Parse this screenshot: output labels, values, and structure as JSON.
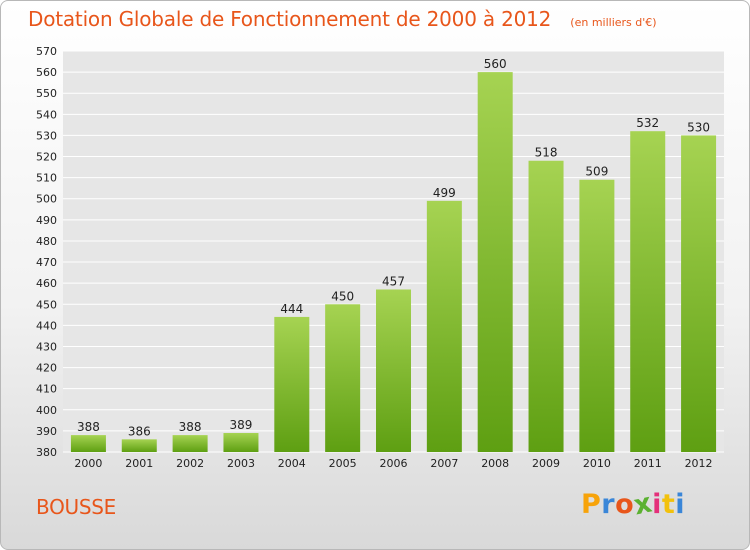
{
  "header": {
    "title": "Dotation Globale de Fonctionnement de 2000 à 2012",
    "subtitle": "(en milliers d'€)"
  },
  "footer": {
    "commune": "BOUSSE",
    "brand_letters": [
      "P",
      "r",
      "o",
      "x",
      "i",
      "t",
      "i"
    ],
    "brand_colors": [
      "#f7a30a",
      "#3a86d8",
      "#e8561b",
      "#5bb131",
      "#e4307a",
      "#f2c10c",
      "#3a86d8"
    ]
  },
  "colors": {
    "bar_top": "#a6d352",
    "bar_bottom": "#5e9f12",
    "title": "#e8561b",
    "grid": "#ffffff"
  },
  "chart_data": {
    "type": "bar",
    "title": "Dotation Globale de Fonctionnement de 2000 à 2012",
    "subtitle": "(en milliers d'€)",
    "categories": [
      "2000",
      "2001",
      "2002",
      "2003",
      "2004",
      "2005",
      "2006",
      "2007",
      "2008",
      "2009",
      "2010",
      "2011",
      "2012"
    ],
    "values": [
      388,
      386,
      388,
      389,
      444,
      450,
      457,
      499,
      560,
      518,
      509,
      532,
      530
    ],
    "ylim": [
      380,
      570
    ],
    "ytick_step": 10,
    "grid": true,
    "xlabel": "",
    "ylabel": ""
  }
}
